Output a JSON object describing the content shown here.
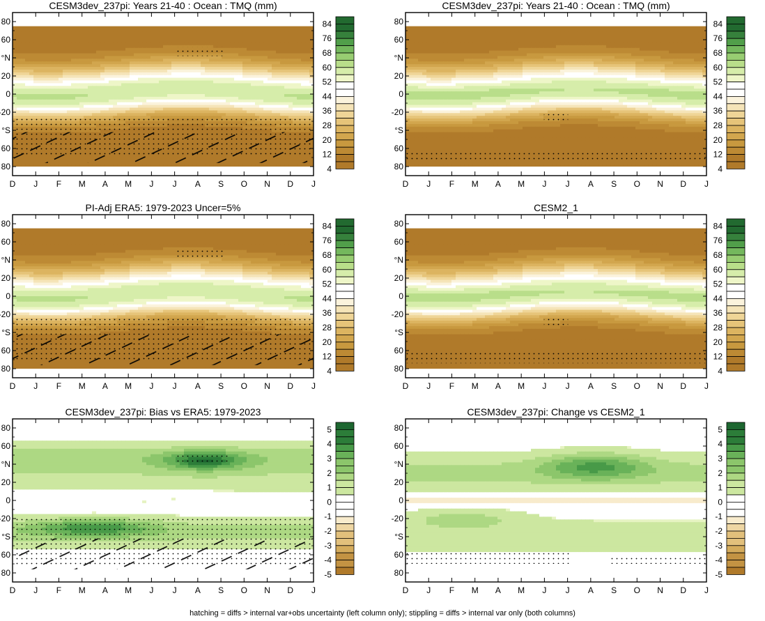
{
  "footnote": "hatching = diffs > internal var+obs uncertainty (left column only); stippling = diffs > internal var only (both columns)",
  "colors": {
    "brown_scale": [
      "#b07a2a",
      "#bd8a34",
      "#c8993f",
      "#d2a64e",
      "#dcb460",
      "#e6c479",
      "#efd597",
      "#f5e4b8",
      "#fbf3dc",
      "#ffffff",
      "#eef6c8",
      "#d6edaa",
      "#b9de8a",
      "#98cd72",
      "#74b85d",
      "#519f4a",
      "#36813c",
      "#226a30"
    ],
    "diff_scale": [
      "#b07a2a",
      "#c39343",
      "#d4ab5c",
      "#e2c07c",
      "#eed6a3",
      "#f8ebcc",
      "#ffffff",
      "#e6f3c2",
      "#cce7a0",
      "#add883",
      "#8cc66b",
      "#69b259",
      "#489a48",
      "#2c7d39",
      "#1d6630"
    ]
  },
  "chart_data": [
    {
      "type": "heatmap",
      "name": "panel-model-tmq",
      "title": "CESM3dev_237pi: Years 21-40 : Ocean : TMQ (mm)",
      "x_ticks": [
        "D",
        "J",
        "F",
        "M",
        "A",
        "M",
        "J",
        "J",
        "A",
        "S",
        "O",
        "N",
        "D",
        "J"
      ],
      "y_ticks": [
        "80",
        "60",
        "°N",
        "20",
        "0",
        "-20",
        "°S",
        "60",
        "80"
      ],
      "colorbar": [
        "84",
        "76",
        "68",
        "60",
        "52",
        "44",
        "36",
        "28",
        "20",
        "12",
        "4"
      ],
      "field": "abs",
      "variant": "obs_like",
      "hatch": true
    },
    {
      "type": "heatmap",
      "name": "panel-model-tmq-right",
      "title": "CESM3dev_237pi: Years 21-40 : Ocean : TMQ (mm)",
      "x_ticks": [
        "D",
        "J",
        "F",
        "M",
        "A",
        "M",
        "J",
        "J",
        "A",
        "S",
        "O",
        "N",
        "D",
        "J"
      ],
      "y_ticks": [
        "80",
        "60",
        "°N",
        "20",
        "0",
        "-20",
        "°S",
        "60",
        "80"
      ],
      "colorbar": [
        "84",
        "76",
        "68",
        "60",
        "52",
        "44",
        "36",
        "28",
        "20",
        "12",
        "4"
      ],
      "field": "abs",
      "variant": "model",
      "hatch": false
    },
    {
      "type": "heatmap",
      "name": "panel-obs-era5",
      "title": "PI-Adj ERA5: 1979-2023 Uncer=5%",
      "x_ticks": [
        "D",
        "J",
        "F",
        "M",
        "A",
        "M",
        "J",
        "J",
        "A",
        "S",
        "O",
        "N",
        "D",
        "J"
      ],
      "y_ticks": [
        "80",
        "60",
        "°N",
        "20",
        "0",
        "-20",
        "°S",
        "60",
        "80"
      ],
      "colorbar": [
        "84",
        "76",
        "68",
        "60",
        "52",
        "44",
        "36",
        "28",
        "20",
        "12",
        "4"
      ],
      "field": "abs",
      "variant": "obs_like",
      "hatch": true
    },
    {
      "type": "heatmap",
      "name": "panel-cesm2",
      "title": "CESM2_1",
      "x_ticks": [
        "D",
        "J",
        "F",
        "M",
        "A",
        "M",
        "J",
        "J",
        "A",
        "S",
        "O",
        "N",
        "D",
        "J"
      ],
      "y_ticks": [
        "80",
        "60",
        "°N",
        "20",
        "0",
        "-20",
        "°S",
        "60",
        "80"
      ],
      "colorbar": [
        "84",
        "76",
        "68",
        "60",
        "52",
        "44",
        "36",
        "28",
        "20",
        "12",
        "4"
      ],
      "field": "abs",
      "variant": "model",
      "hatch": false
    },
    {
      "type": "heatmap",
      "name": "panel-bias",
      "title": "CESM3dev_237pi: Bias vs ERA5: 1979-2023",
      "x_ticks": [
        "D",
        "J",
        "F",
        "M",
        "A",
        "M",
        "J",
        "J",
        "A",
        "S",
        "O",
        "N",
        "D",
        "J"
      ],
      "y_ticks": [
        "80",
        "60",
        "°N",
        "20",
        "0",
        "-20",
        "°S",
        "60",
        "80"
      ],
      "colorbar": [
        "5",
        "4",
        "3",
        "2",
        "1",
        "0",
        "-1",
        "-2",
        "-3",
        "-4",
        "-5"
      ],
      "field": "bias",
      "variant": "bias",
      "hatch": true
    },
    {
      "type": "heatmap",
      "name": "panel-change",
      "title": "CESM3dev_237pi: Change vs CESM2_1",
      "x_ticks": [
        "D",
        "J",
        "F",
        "M",
        "A",
        "M",
        "J",
        "J",
        "A",
        "S",
        "O",
        "N",
        "D",
        "J"
      ],
      "y_ticks": [
        "80",
        "60",
        "°N",
        "20",
        "0",
        "-20",
        "°S",
        "60",
        "80"
      ],
      "colorbar": [
        "5",
        "4",
        "3",
        "2",
        "1",
        "0",
        "-1",
        "-2",
        "-3",
        "-4",
        "-5"
      ],
      "field": "change",
      "variant": "change",
      "hatch": false
    }
  ]
}
